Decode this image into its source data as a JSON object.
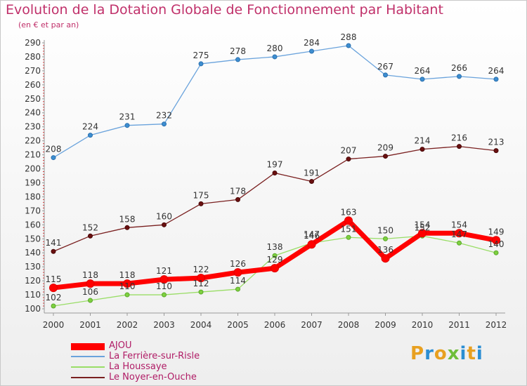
{
  "header": {
    "title": "Evolution de la Dotation Globale de Fonctionnement par Habitant",
    "subtitle": "(en € et par an)"
  },
  "logo": {
    "text": "Proxiti",
    "letter_colors": [
      "#e8a020",
      "#2b8ed3",
      "#e8a020",
      "#6fbe3a",
      "#2b8ed3",
      "#e8a020",
      "#2b8ed3"
    ]
  },
  "chart_data": {
    "type": "line",
    "title": "Evolution de la Dotation Globale de Fonctionnement par Habitant",
    "subtitle": "(en € et par an)",
    "x": [
      "2000",
      "2001",
      "2002",
      "2003",
      "2004",
      "2005",
      "2006",
      "2007",
      "2008",
      "2009",
      "2010",
      "2011",
      "2012"
    ],
    "ylim": [
      100,
      290
    ],
    "yticks": [
      100,
      110,
      120,
      130,
      140,
      150,
      160,
      170,
      180,
      190,
      200,
      210,
      220,
      230,
      240,
      250,
      260,
      270,
      280,
      290
    ],
    "grid": false,
    "legend_position": "bottom-left",
    "series": [
      {
        "name": "AJOU",
        "color": "#ff0000",
        "values": [
          115,
          118,
          118,
          121,
          122,
          126,
          129,
          146,
          163,
          136,
          154,
          154,
          149
        ]
      },
      {
        "name": "La Ferrière-sur-Risle",
        "color": "#6aa3dc",
        "values": [
          208,
          224,
          231,
          232,
          275,
          278,
          280,
          284,
          288,
          267,
          264,
          266,
          264
        ]
      },
      {
        "name": "La Houssaye",
        "color": "#99dd66",
        "values": [
          102,
          106,
          110,
          110,
          112,
          114,
          138,
          147,
          151,
          150,
          152,
          147,
          140
        ]
      },
      {
        "name": "Le Noyer-en-Ouche",
        "color": "#7a2020",
        "values": [
          141,
          152,
          158,
          160,
          175,
          178,
          197,
          191,
          207,
          209,
          214,
          216,
          213
        ]
      }
    ],
    "data_labels": [
      [
        "115",
        "118",
        "118",
        "121",
        "122",
        "126",
        "129",
        "146",
        "163",
        "136",
        "154",
        "154",
        "149"
      ],
      [
        "208",
        "224",
        "231",
        "232",
        "275",
        "278",
        "280",
        "284",
        "288",
        "267",
        "264",
        "266",
        "264"
      ],
      [
        "102",
        "106",
        "110",
        "110",
        "112",
        "114",
        "138",
        "147",
        "151",
        "150",
        "152",
        "147",
        "140"
      ],
      [
        "141",
        "152",
        "158",
        "160",
        "175",
        "178",
        "197",
        "191",
        "207",
        "209",
        "214",
        "216",
        "213"
      ]
    ]
  }
}
